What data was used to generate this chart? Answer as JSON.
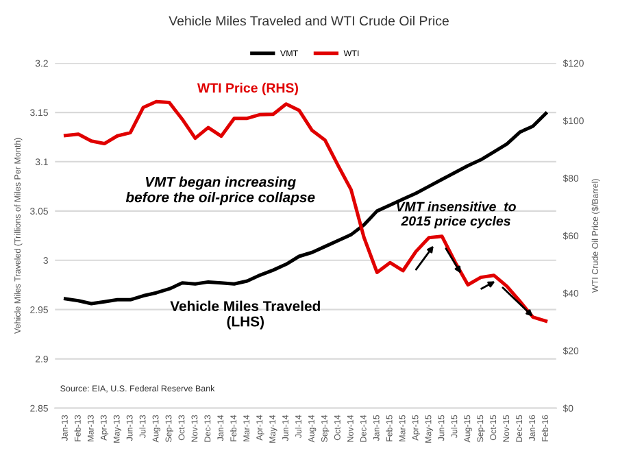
{
  "chart_data": {
    "type": "line",
    "title": "Vehicle Miles Traveled and WTI Crude Oil Price",
    "ylabel": "Vehicle Miles Traveled (Trillions of Miles Per Month)",
    "y2label": "WTI Crude Oil Price ($/Barrel)",
    "categories": [
      "Jan-13",
      "Feb-13",
      "Mar-13",
      "Apr-13",
      "May-13",
      "Jun-13",
      "Jul-13",
      "Aug-13",
      "Sep-13",
      "Oct-13",
      "Nov-13",
      "Dec-13",
      "Jan-14",
      "Feb-14",
      "Mar-14",
      "Apr-14",
      "May-14",
      "Jun-14",
      "Jul-14",
      "Aug-14",
      "Sep-14",
      "Oct-14",
      "Nov-14",
      "Dec-14",
      "Jan-15",
      "Feb-15",
      "Mar-15",
      "Apr-15",
      "May-15",
      "Jun-15",
      "Jul-15",
      "Aug-15",
      "Sep-15",
      "Oct-15",
      "Nov-15",
      "Dec-15",
      "Jan-16",
      "Feb-16"
    ],
    "series": [
      {
        "name": "VMT",
        "color": "#000000",
        "values": [
          2.961,
          2.959,
          2.956,
          2.958,
          2.96,
          2.96,
          2.964,
          2.967,
          2.971,
          2.977,
          2.976,
          2.978,
          2.977,
          2.976,
          2.979,
          2.985,
          2.99,
          2.996,
          3.004,
          3.008,
          3.014,
          3.02,
          3.026,
          3.036,
          3.05,
          3.056,
          3.062,
          3.068,
          3.075,
          3.082,
          3.089,
          3.096,
          3.102,
          3.11,
          3.118,
          3.13,
          3.136,
          3.149
        ]
      },
      {
        "name": "WTI",
        "color": "#e00000",
        "axis": "y2",
        "values": [
          94.8,
          95.3,
          92.9,
          92.0,
          94.7,
          95.8,
          104.6,
          106.6,
          106.3,
          100.5,
          93.9,
          97.6,
          94.6,
          100.8,
          100.8,
          102.1,
          102.2,
          105.8,
          103.6,
          96.6,
          93.2,
          84.4,
          76.0,
          59.3,
          47.2,
          50.6,
          47.8,
          54.5,
          59.3,
          59.8,
          50.9,
          42.9,
          45.5,
          46.2,
          42.4,
          37.2,
          31.7,
          30.3
        ]
      }
    ],
    "ylim": [
      2.85,
      3.2
    ],
    "yticks": [
      2.85,
      2.9,
      2.95,
      3,
      3.05,
      3.1,
      3.15,
      3.2
    ],
    "y2lim": [
      0,
      120
    ],
    "y2ticks": [
      {
        "value": 0,
        "label": "$0"
      },
      {
        "value": 20,
        "label": "$20"
      },
      {
        "value": 40,
        "label": "$40"
      },
      {
        "value": 60,
        "label": "$60"
      },
      {
        "value": 80,
        "label": "$80"
      },
      {
        "value": 100,
        "label": "$100"
      },
      {
        "value": 120,
        "label": "$120"
      }
    ],
    "grid": "y",
    "legend": "top",
    "marker": "none",
    "line_style": "solid",
    "annotations": [
      "WTI Price (RHS)",
      "VMT began increasing\nbefore the oil-price collapse",
      "VMT insensitive  to\n2015 price cycles",
      "Vehicle Miles Traveled\n(LHS)",
      "Source: EIA, U.S. Federal Reserve Bank"
    ]
  }
}
